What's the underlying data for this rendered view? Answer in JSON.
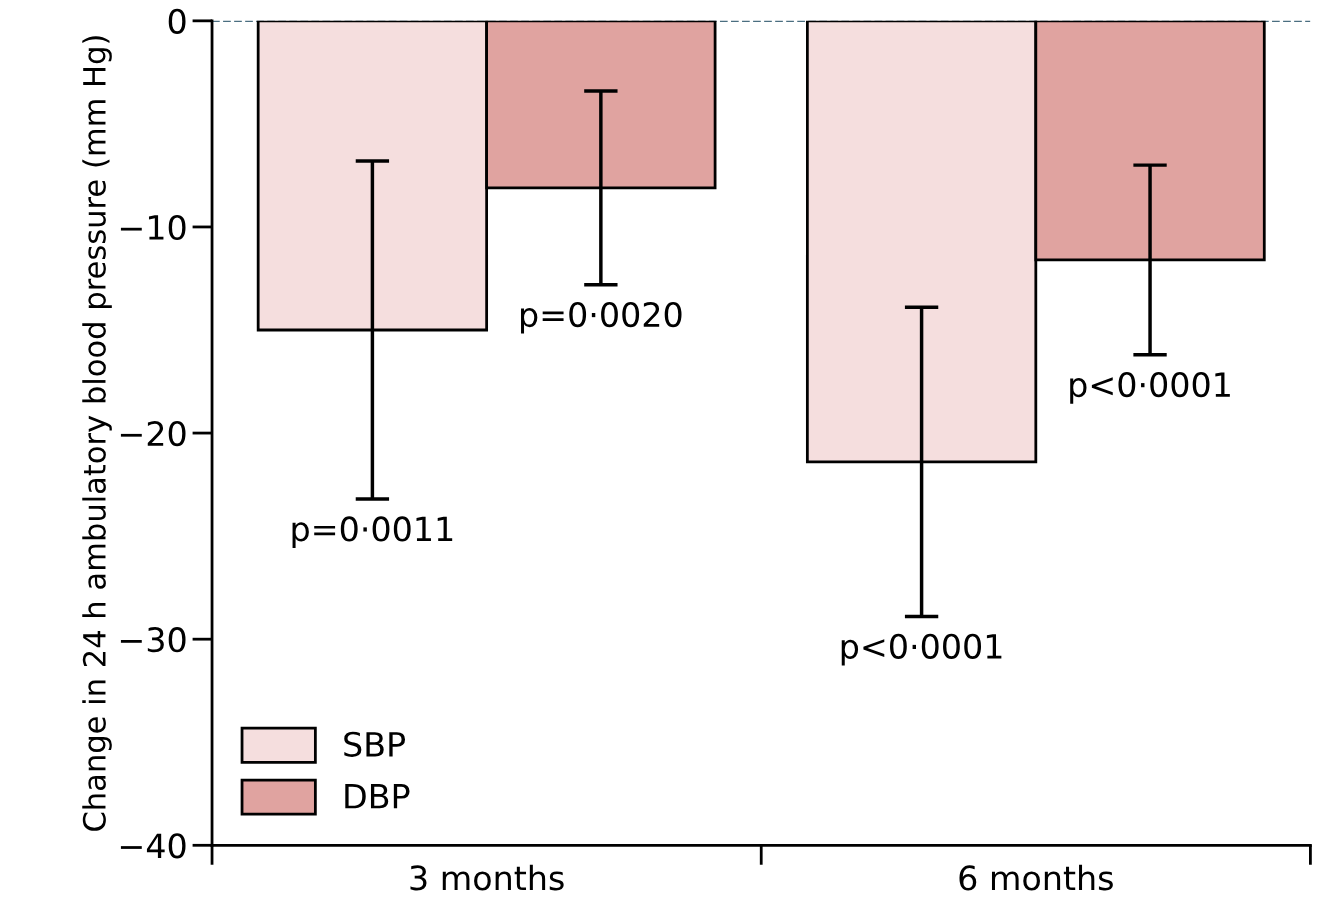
{
  "chart_data": {
    "type": "bar",
    "ylabel": "Change in 24 h ambulatory blood pressure (mm Hg)",
    "categories": [
      "3 months",
      "6 months"
    ],
    "series": [
      {
        "name": "SBP",
        "color": "#f5dede",
        "values": [
          -15.0,
          -21.4
        ],
        "errors": [
          8.2,
          7.5
        ]
      },
      {
        "name": "DBP",
        "color": "#e0a3a0",
        "values": [
          -8.1,
          -11.6
        ],
        "errors": [
          4.7,
          4.6
        ]
      }
    ],
    "ylim": [
      -40,
      0
    ],
    "yticks": [
      {
        "value": -40,
        "label": "−40"
      },
      {
        "value": -30,
        "label": "−30"
      },
      {
        "value": -20,
        "label": "−20"
      },
      {
        "value": -10,
        "label": "−10"
      },
      0
    ],
    "ref_lines": [
      {
        "axis": "y",
        "value": 0,
        "color": "#4a6e80",
        "line_style": "dashed"
      }
    ],
    "annotations": [
      "p=0·0011",
      "p=0·0020",
      "p<0·0001",
      "p<0·0001"
    ],
    "grid": false,
    "legend": "bottom left"
  }
}
